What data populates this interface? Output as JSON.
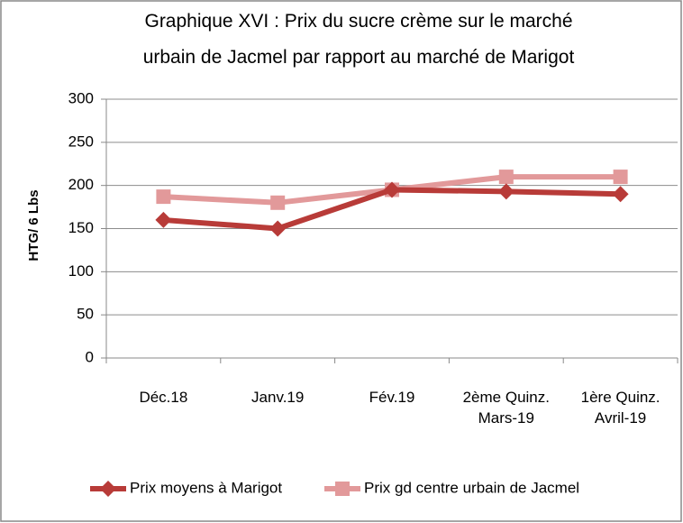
{
  "chart_data": {
    "type": "line",
    "title": [
      "Graphique XVI : Prix du sucre crème sur le marché",
      "urbain de Jacmel par rapport au marché de Marigot"
    ],
    "ylabel": "HTG/ 6 Lbs",
    "categories": [
      "Déc.18",
      "Janv.19",
      "Fév.19",
      "2ème   Quinz.\nMars-19",
      "1ère   Quinz.\nAvril-19"
    ],
    "series": [
      {
        "name": "Prix moyens à Marigot",
        "color": "#b83b38",
        "marker": "diamond",
        "values": [
          160,
          150,
          195,
          193,
          190
        ]
      },
      {
        "name": "Prix gd centre urbain de Jacmel",
        "color": "#e2999a",
        "marker": "square",
        "values": [
          187,
          180,
          195,
          210,
          210
        ]
      }
    ],
    "ylim": [
      0,
      300
    ],
    "yticks": [
      0,
      50,
      100,
      150,
      200,
      250,
      300
    ],
    "grid": true,
    "legend": "bottom"
  }
}
